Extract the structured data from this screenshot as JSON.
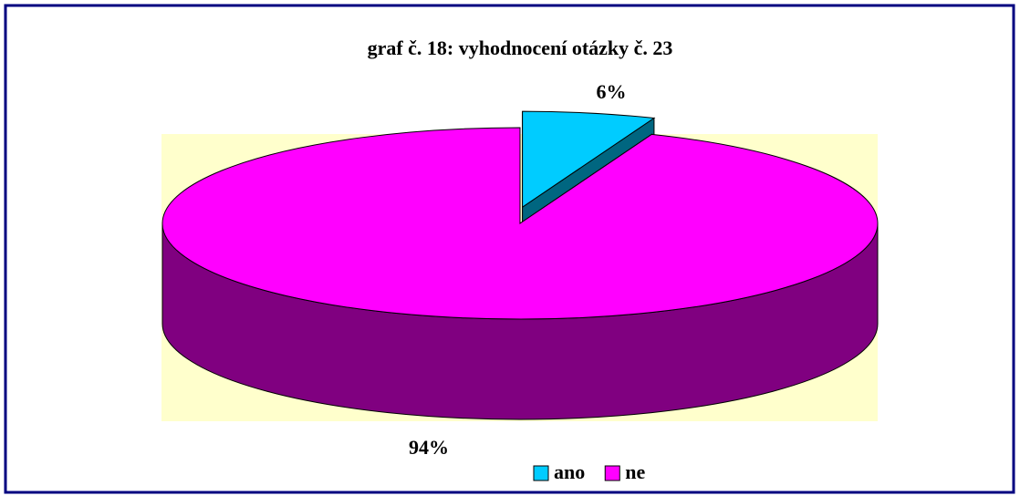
{
  "chart_data": {
    "type": "pie",
    "title": "graf č. 18: vyhodnocení otázky č. 23",
    "categories": [
      "ano",
      "ne"
    ],
    "values": [
      6,
      94
    ],
    "value_labels": [
      "6%",
      "94%"
    ],
    "colors": [
      "#00ccff",
      "#ff00ff"
    ],
    "legend": "bottom"
  }
}
